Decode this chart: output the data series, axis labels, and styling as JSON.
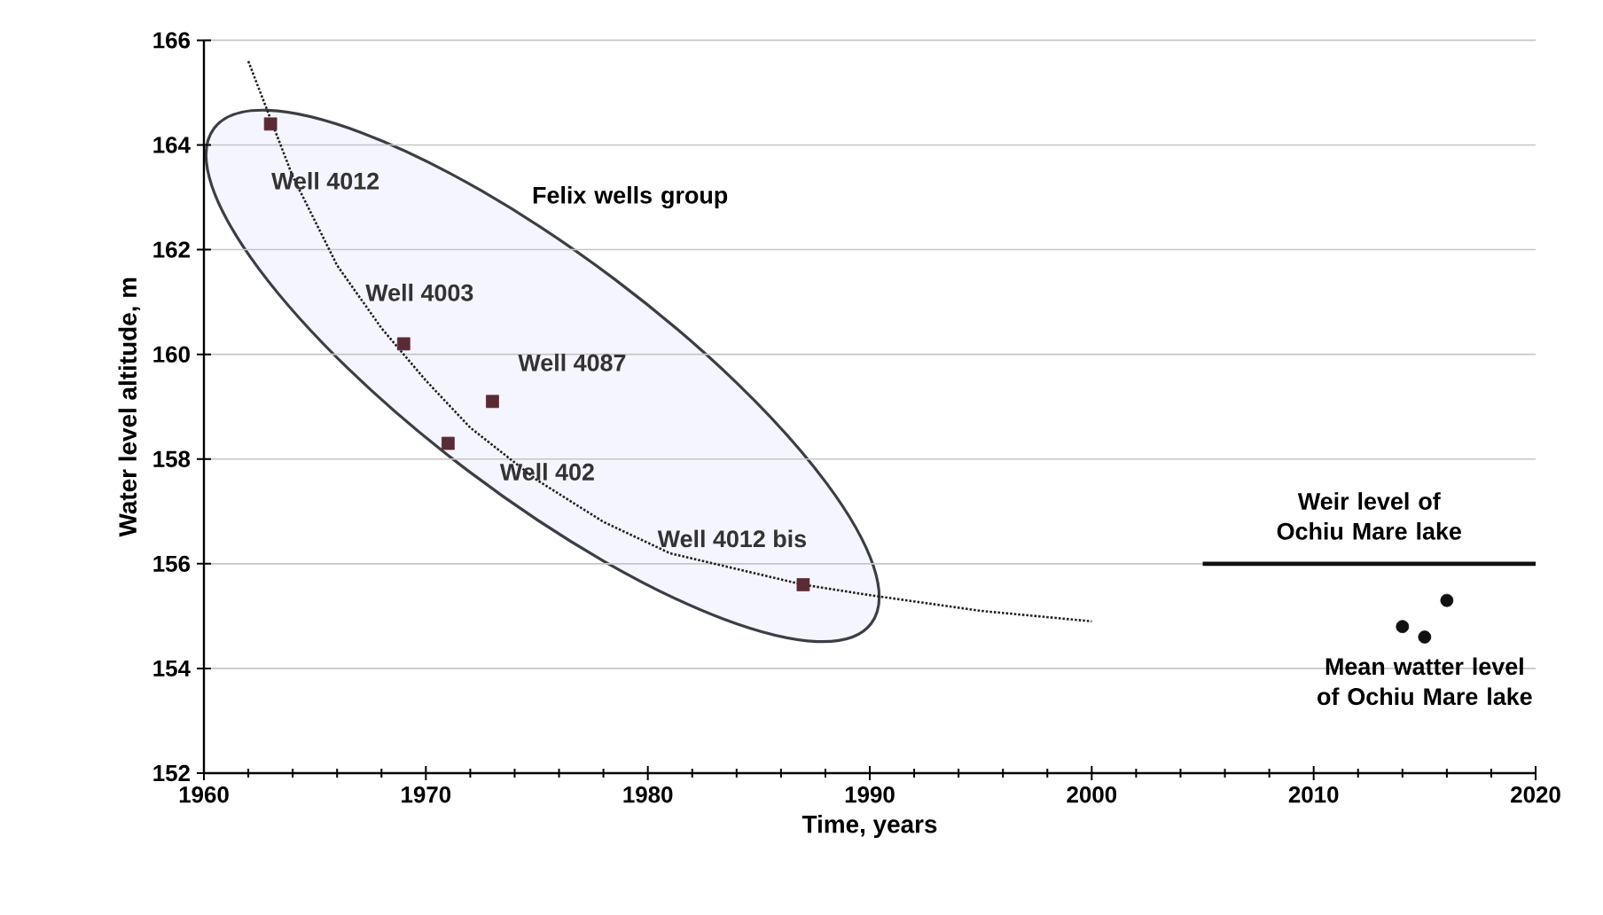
{
  "chart_data": {
    "type": "scatter",
    "xlabel": "Time, years",
    "ylabel": "Water level altitude, m",
    "xlim": [
      1960,
      2020
    ],
    "ylim": [
      152,
      166
    ],
    "xticks": [
      1960,
      1970,
      1980,
      1990,
      2000,
      2010,
      2020
    ],
    "yticks": [
      152,
      154,
      156,
      158,
      160,
      162,
      164,
      166
    ],
    "grid": "y",
    "series": [
      {
        "marker": "square",
        "color": "#5a2a35",
        "x": [
          1963,
          1969,
          1973,
          1971,
          1987
        ],
        "values": [
          164.4,
          160.2,
          159.1,
          158.3,
          155.6
        ]
      },
      {
        "type": "line",
        "marker": "none",
        "line_style": "dotted",
        "color": "#222222",
        "x": [
          1962,
          1964,
          1966,
          1968,
          1970,
          1972,
          1975,
          1978,
          1981,
          1984,
          1987,
          1990,
          1995,
          2000
        ],
        "values": [
          165.6,
          163.4,
          161.7,
          160.5,
          159.5,
          158.6,
          157.6,
          156.8,
          156.2,
          155.9,
          155.6,
          155.4,
          155.1,
          154.9
        ]
      },
      {
        "type": "line",
        "marker": "none",
        "line_style": "solid",
        "color": "#111111",
        "name": "Weir level of Ochiu Mare lake",
        "x": [
          2005,
          2020
        ],
        "values": [
          156,
          156
        ]
      },
      {
        "marker": "circle",
        "color": "#111111",
        "name": "Mean watter level of Ochiu Mare lake",
        "x": [
          2014,
          2015,
          2016
        ],
        "values": [
          154.8,
          154.6,
          155.3
        ]
      }
    ],
    "annotations": [
      {
        "text": "Well 4012",
        "x": 1963,
        "y": 164.4
      },
      {
        "text": "Well 4003",
        "x": 1969,
        "y": 160.2
      },
      {
        "text": "Well 4087",
        "x": 1973,
        "y": 159.1
      },
      {
        "text": "Well 402",
        "x": 1971,
        "y": 158.3
      },
      {
        "text": "Well 4012 bis",
        "x": 1987,
        "y": 155.6
      },
      "Felix wells group"
    ]
  }
}
